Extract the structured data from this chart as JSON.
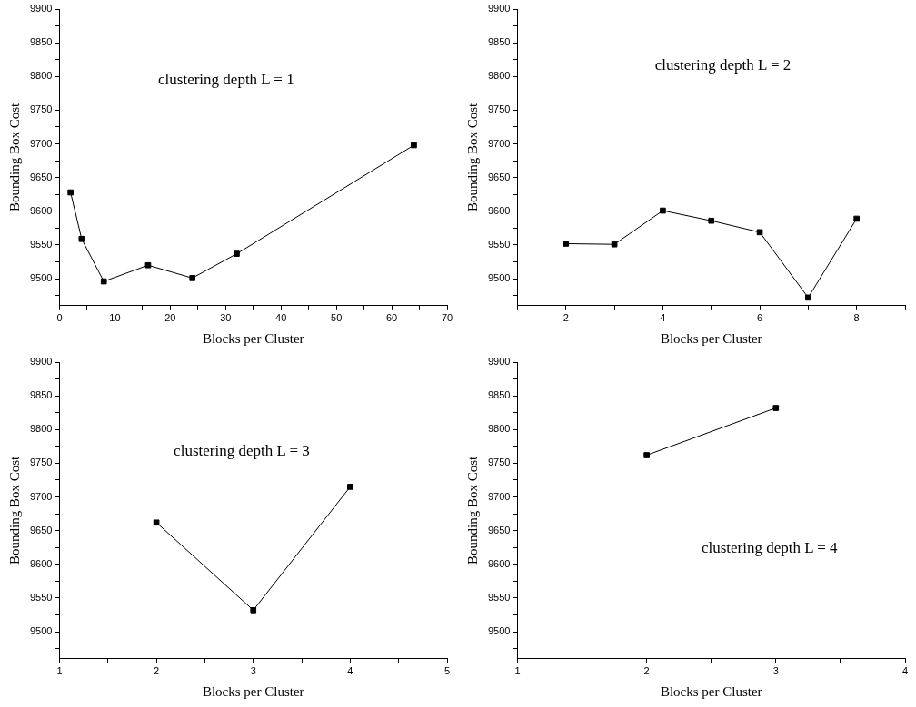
{
  "chart_data": [
    {
      "type": "line",
      "xlabel": "Blocks per Cluster",
      "ylabel": "Bounding Box Cost",
      "annotations": [
        "clustering depth L = 1"
      ],
      "x": [
        2,
        4,
        8,
        16,
        24,
        32,
        64
      ],
      "values": [
        9628,
        9559,
        9496,
        9520,
        9501,
        9537,
        9698
      ],
      "color": "#000000",
      "marker": "square",
      "xlim": [
        0,
        70
      ],
      "ylim": [
        9460,
        9900
      ],
      "xticks": [
        0,
        {
          "value": 5,
          "label": null
        },
        10,
        {
          "value": 15,
          "label": null
        },
        20,
        {
          "value": 25,
          "label": null
        },
        30,
        {
          "value": 35,
          "label": null
        },
        40,
        {
          "value": 45,
          "label": null
        },
        50,
        {
          "value": 55,
          "label": null
        },
        60,
        {
          "value": 65,
          "label": null
        },
        70
      ],
      "yticks": [
        {
          "value": 9475,
          "label": null
        },
        9500,
        {
          "value": 9525,
          "label": null
        },
        9550,
        {
          "value": 9575,
          "label": null
        },
        9600,
        {
          "value": 9625,
          "label": null
        },
        9650,
        {
          "value": 9675,
          "label": null
        },
        9700,
        {
          "value": 9725,
          "label": null
        },
        9750,
        {
          "value": 9775,
          "label": null
        },
        9800,
        {
          "value": 9825,
          "label": null
        },
        9850,
        {
          "value": 9875,
          "label": null
        },
        9900
      ]
    },
    {
      "type": "line",
      "xlabel": "Blocks per Cluster",
      "ylabel": "Bounding Box Cost",
      "annotations": [
        "clustering depth L = 2"
      ],
      "x": [
        2,
        3,
        4,
        5,
        6,
        7,
        8
      ],
      "values": [
        9552,
        9551,
        9601,
        9586,
        9569,
        9472,
        9589
      ],
      "color": "#000000",
      "marker": "square",
      "xlim": [
        1,
        9
      ],
      "ylim": [
        9460,
        9900
      ],
      "xticks": [
        {
          "value": 1,
          "label": null
        },
        2,
        {
          "value": 3,
          "label": null
        },
        4,
        {
          "value": 5,
          "label": null
        },
        6,
        {
          "value": 7,
          "label": null
        },
        8,
        {
          "value": 9,
          "label": null
        }
      ],
      "yticks": [
        {
          "value": 9475,
          "label": null
        },
        9500,
        {
          "value": 9525,
          "label": null
        },
        9550,
        {
          "value": 9575,
          "label": null
        },
        9600,
        {
          "value": 9625,
          "label": null
        },
        9650,
        {
          "value": 9675,
          "label": null
        },
        9700,
        {
          "value": 9725,
          "label": null
        },
        9750,
        {
          "value": 9775,
          "label": null
        },
        9800,
        {
          "value": 9825,
          "label": null
        },
        9850,
        {
          "value": 9875,
          "label": null
        },
        9900
      ]
    },
    {
      "type": "line",
      "xlabel": "Blocks per Cluster",
      "ylabel": "Bounding Box Cost",
      "annotations": [
        "clustering depth L = 3"
      ],
      "x": [
        2,
        3,
        4
      ],
      "values": [
        9662,
        9532,
        9715
      ],
      "color": "#000000",
      "marker": "square",
      "xlim": [
        1,
        5
      ],
      "ylim": [
        9460,
        9900
      ],
      "xticks": [
        1,
        {
          "value": 1.5,
          "label": null
        },
        2,
        {
          "value": 2.5,
          "label": null
        },
        3,
        {
          "value": 3.5,
          "label": null
        },
        4,
        {
          "value": 4.5,
          "label": null
        },
        5
      ],
      "yticks": [
        {
          "value": 9475,
          "label": null
        },
        9500,
        {
          "value": 9525,
          "label": null
        },
        9550,
        {
          "value": 9575,
          "label": null
        },
        9600,
        {
          "value": 9625,
          "label": null
        },
        9650,
        {
          "value": 9675,
          "label": null
        },
        9700,
        {
          "value": 9725,
          "label": null
        },
        9750,
        {
          "value": 9775,
          "label": null
        },
        9800,
        {
          "value": 9825,
          "label": null
        },
        9850,
        {
          "value": 9875,
          "label": null
        },
        9900
      ]
    },
    {
      "type": "line",
      "xlabel": "Blocks per Cluster",
      "ylabel": "Bounding Box Cost",
      "annotations": [
        "clustering depth L = 4"
      ],
      "x": [
        2,
        3
      ],
      "values": [
        9762,
        9832
      ],
      "color": "#000000",
      "marker": "square",
      "xlim": [
        1,
        4
      ],
      "ylim": [
        9460,
        9900
      ],
      "xticks": [
        1,
        {
          "value": 1.5,
          "label": null
        },
        2,
        {
          "value": 2.5,
          "label": null
        },
        3,
        {
          "value": 3.5,
          "label": null
        },
        4
      ],
      "yticks": [
        {
          "value": 9475,
          "label": null
        },
        9500,
        {
          "value": 9525,
          "label": null
        },
        9550,
        {
          "value": 9575,
          "label": null
        },
        9600,
        {
          "value": 9625,
          "label": null
        },
        9650,
        {
          "value": 9675,
          "label": null
        },
        9700,
        {
          "value": 9725,
          "label": null
        },
        9750,
        {
          "value": 9775,
          "label": null
        },
        9800,
        {
          "value": 9825,
          "label": null
        },
        9850,
        {
          "value": 9875,
          "label": null
        },
        9900
      ]
    }
  ]
}
